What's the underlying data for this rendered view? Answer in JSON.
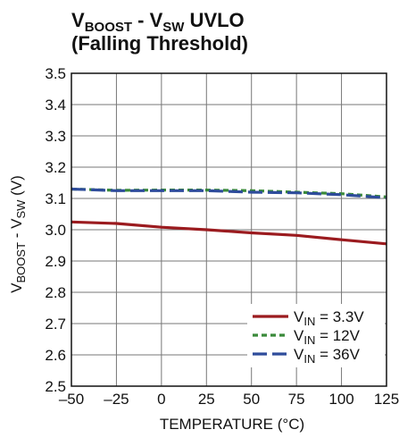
{
  "chart_data": {
    "type": "line",
    "title": {
      "main": "V",
      "main_sub": "BOOST",
      "mid": " - V",
      "mid_sub": "SW",
      "end": " UVLO",
      "line2": "(Falling Threshold)"
    },
    "xlabel": "TEMPERATURE (°C)",
    "ylabel": {
      "main": "V",
      "main_sub": "BOOST",
      "mid": " - V",
      "mid_sub": "SW",
      "end": " (V)"
    },
    "xlim": [
      -50,
      125
    ],
    "ylim": [
      2.5,
      3.5
    ],
    "xticks": [
      -50,
      -25,
      0,
      25,
      50,
      75,
      100,
      125
    ],
    "xtick_labels": [
      "–50",
      "–25",
      "0",
      "25",
      "50",
      "75",
      "100",
      "125"
    ],
    "yticks": [
      2.5,
      2.6,
      2.7,
      2.8,
      2.9,
      3.0,
      3.1,
      3.2,
      3.3,
      3.4,
      3.5
    ],
    "ytick_labels": [
      "2.5",
      "2.6",
      "2.7",
      "2.8",
      "2.9",
      "3.0",
      "3.1",
      "3.2",
      "3.3",
      "3.4",
      "3.5"
    ],
    "grid": true,
    "legend_position": "bottom-right",
    "series": [
      {
        "name": "V",
        "name_sub": "IN",
        "name_end": " = 3.3V",
        "color": "#9b1b1f",
        "dash": "solid",
        "x": [
          -50,
          -25,
          0,
          25,
          50,
          75,
          100,
          125
        ],
        "y": [
          3.025,
          3.02,
          3.008,
          3.0,
          2.99,
          2.982,
          2.968,
          2.955
        ]
      },
      {
        "name": "V",
        "name_sub": "IN",
        "name_end": " = 12V",
        "color": "#3a8a3a",
        "dash": "short",
        "x": [
          -50,
          -25,
          0,
          25,
          50,
          75,
          100,
          125
        ],
        "y": [
          3.13,
          3.126,
          3.127,
          3.127,
          3.125,
          3.12,
          3.115,
          3.105
        ]
      },
      {
        "name": "V",
        "name_sub": "IN",
        "name_end": " = 36V",
        "color": "#2e4c9b",
        "dash": "long",
        "x": [
          -50,
          -25,
          0,
          25,
          50,
          75,
          100,
          125
        ],
        "y": [
          3.13,
          3.125,
          3.125,
          3.125,
          3.12,
          3.118,
          3.112,
          3.102
        ]
      }
    ]
  }
}
